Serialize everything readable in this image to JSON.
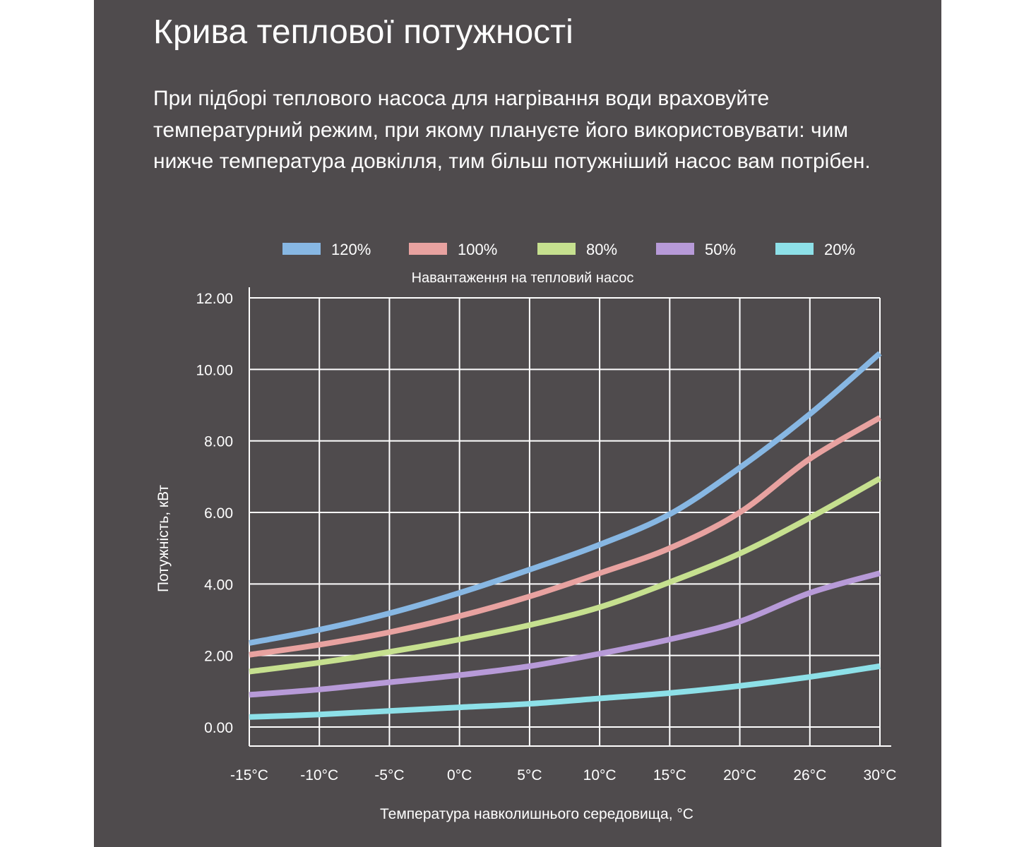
{
  "page": {
    "title": "Крива теплової потужності",
    "description": "При підборі теплового насоса для нагрівання води враховуйте температурний режим, при якому плануєте його використовувати: чим нижче температура довкілля, тим більш потужніший насос вам потрібен."
  },
  "chart_data": {
    "type": "line",
    "legend_title": "Навантаження на тепловий насос",
    "xlabel": "Температура навколишнього середовища, °C",
    "ylabel": "Потужність, кВт",
    "categories": [
      "-15°C",
      "-10°C",
      "-5°C",
      "0°C",
      "5°C",
      "10°C",
      "15°C",
      "20°C",
      "26°C",
      "30°C"
    ],
    "y_ticks": [
      "12.00",
      "10.00",
      "8.00",
      "6.00",
      "4.00",
      "2.00",
      "0.00"
    ],
    "ylim": [
      0,
      12
    ],
    "grid": true,
    "legend_position": "top",
    "series": [
      {
        "name": "120%",
        "color": "#87b7e3",
        "values": [
          2.35,
          2.72,
          3.18,
          3.75,
          4.4,
          5.1,
          5.95,
          7.25,
          8.75,
          10.45
        ]
      },
      {
        "name": "100%",
        "color": "#e8a2a0",
        "values": [
          2.02,
          2.3,
          2.65,
          3.1,
          3.65,
          4.3,
          5.0,
          6.0,
          7.5,
          8.65
        ]
      },
      {
        "name": "80%",
        "color": "#c6e08f",
        "values": [
          1.55,
          1.8,
          2.1,
          2.45,
          2.85,
          3.35,
          4.05,
          4.85,
          5.85,
          6.95
        ]
      },
      {
        "name": "50%",
        "color": "#b79ad8",
        "values": [
          0.9,
          1.05,
          1.25,
          1.45,
          1.7,
          2.05,
          2.45,
          2.95,
          3.75,
          4.3
        ]
      },
      {
        "name": "20%",
        "color": "#8de0e8",
        "values": [
          0.28,
          0.35,
          0.45,
          0.55,
          0.65,
          0.8,
          0.95,
          1.15,
          1.4,
          1.7
        ]
      }
    ]
  }
}
